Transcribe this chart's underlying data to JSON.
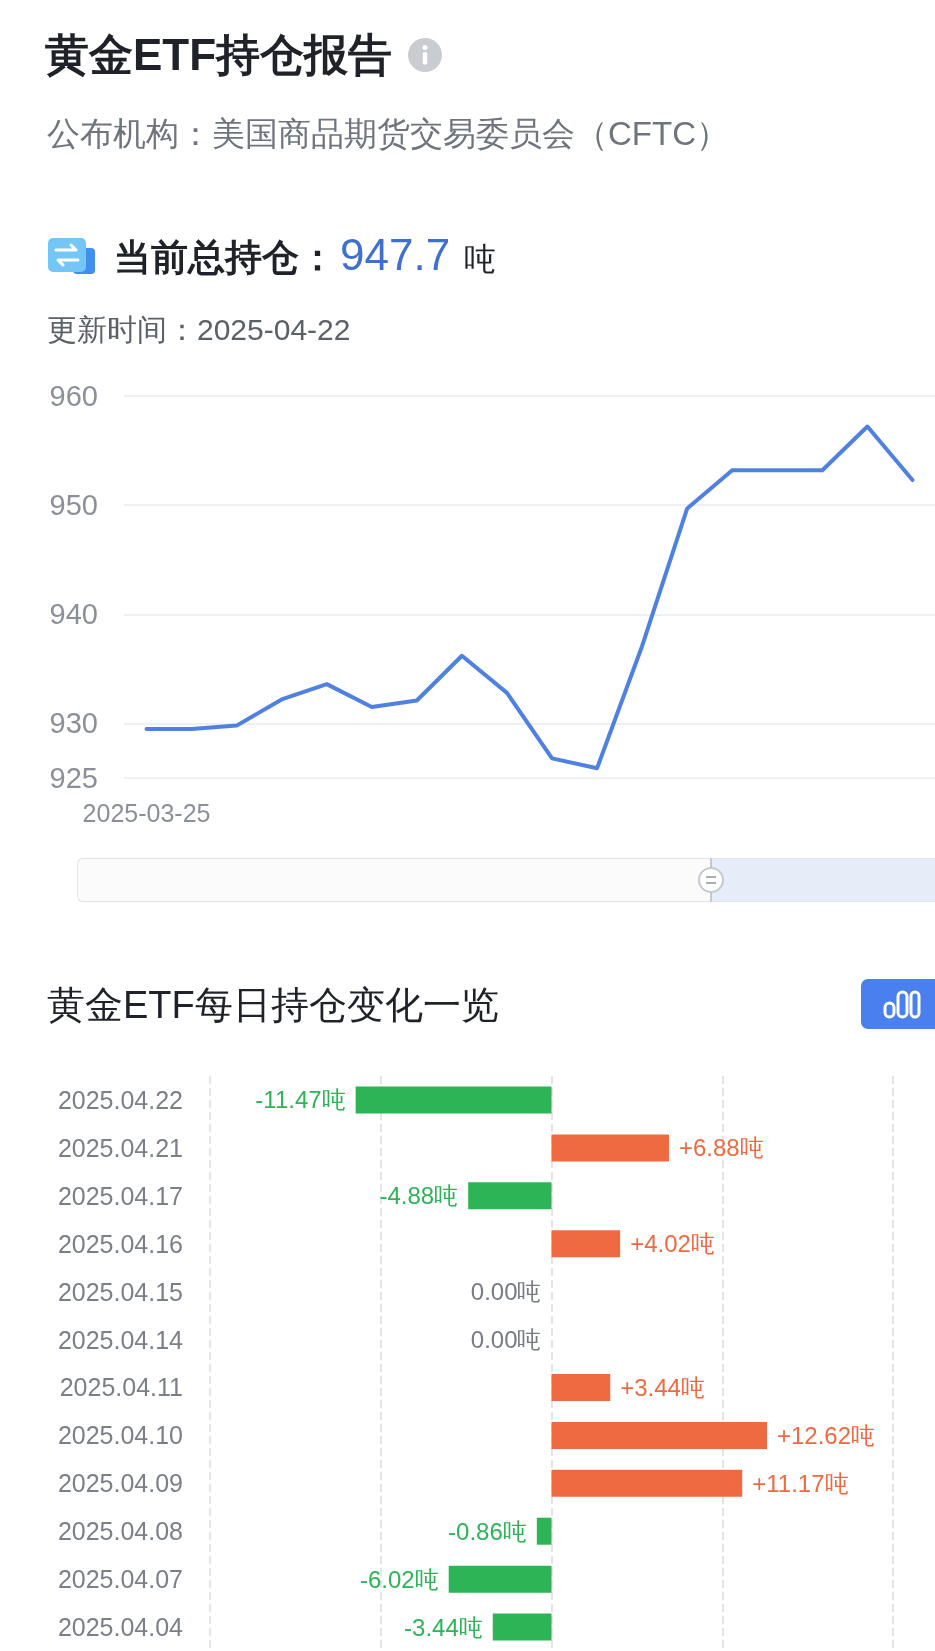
{
  "chart_data": [
    {
      "type": "line",
      "title": "黄金ETF持仓报告",
      "subtitle": "公布机构：美国商品期货交易委员会（CFTC）",
      "annotations": [
        "当前总持仓：",
        "947.7",
        "吨",
        "更新时间：2025-04-22"
      ],
      "categories": [
        "2025-03-25",
        null,
        null,
        null,
        null,
        null,
        null,
        null,
        null,
        null,
        null,
        null,
        null,
        null,
        null,
        null,
        null,
        null
      ],
      "values": [
        929.5,
        929.5,
        929.8,
        932.2,
        933.6,
        931.5,
        932.1,
        936.2,
        932.8,
        926.8,
        925.9,
        937.1,
        949.7,
        953.2,
        953.2,
        953.2,
        957.2,
        952.3
      ],
      "color": "#4f81e0",
      "ylim": [
        925,
        960
      ],
      "yticks": [
        925,
        930,
        940,
        950,
        960
      ],
      "grid": "y",
      "marker": "none",
      "line_style": "solid"
    },
    {
      "type": "bar",
      "orientation": "horizontal",
      "title": "黄金ETF每日持仓变化一览",
      "categories": [
        "2025.04.22",
        "2025.04.21",
        "2025.04.17",
        "2025.04.16",
        "2025.04.15",
        "2025.04.14",
        "2025.04.11",
        "2025.04.10",
        "2025.04.09",
        "2025.04.08",
        "2025.04.07",
        "2025.04.04"
      ],
      "values": [
        -11.47,
        6.88,
        -4.88,
        4.02,
        0,
        0,
        3.44,
        12.62,
        11.17,
        -0.86,
        -6.02,
        -3.44
      ],
      "colors": [
        "#2db457",
        "#ef6a40",
        "#2db457",
        "#ef6a40",
        "#777c84",
        "#777c84",
        "#ef6a40",
        "#ef6a40",
        "#ef6a40",
        "#2db457",
        "#2db457",
        "#2db457"
      ],
      "value_labels": [
        "-11.47吨",
        "+6.88吨",
        "-4.88吨",
        "+4.02吨",
        "0.00吨",
        "0.00吨",
        "+3.44吨",
        "+12.62吨",
        "+11.17吨",
        "-0.86吨",
        "-6.02吨",
        "-3.44吨"
      ],
      "xlim": [
        -20,
        20
      ],
      "xticks": [
        {
          "value": -20,
          "label": null
        },
        {
          "value": -10,
          "label": null
        },
        {
          "value": 0,
          "label": null
        },
        {
          "value": 10,
          "label": null
        },
        {
          "value": 20,
          "label": null
        }
      ],
      "grid": "x",
      "tick_labels": "y"
    }
  ]
}
